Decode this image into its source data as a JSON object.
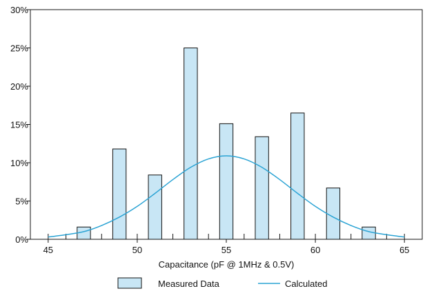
{
  "chart_data": {
    "type": "bar",
    "xlabel": "Capacitance (pF @ 1MHz & 0.5V)",
    "ylabel": "",
    "xlim": [
      44,
      66
    ],
    "ylim": [
      0,
      30
    ],
    "x_ticks": [
      45,
      50,
      55,
      60,
      65
    ],
    "x_tick_labels": [
      "45",
      "50",
      "55",
      "60",
      "65"
    ],
    "y_ticks": [
      0,
      5,
      10,
      15,
      20,
      25,
      30
    ],
    "y_tick_labels": [
      "0%",
      "5%",
      "10%",
      "15%",
      "20%",
      "25%",
      "30%"
    ],
    "minor_x_ticks": [
      45,
      46,
      47,
      48,
      49,
      50,
      51,
      52,
      53,
      54,
      55,
      56,
      57,
      58,
      59,
      60,
      61,
      62,
      63,
      64,
      65
    ],
    "grid": false,
    "legend_position": "bottom",
    "series": [
      {
        "name": "Measured Data",
        "type": "bar",
        "color": "#c8e6f5",
        "stroke": "#111111",
        "x": [
          47,
          49,
          51,
          53,
          55,
          57,
          59,
          61,
          63
        ],
        "values": [
          1.6,
          11.8,
          8.4,
          25.0,
          15.1,
          13.4,
          16.5,
          6.7,
          1.6
        ]
      },
      {
        "name": "Calculated",
        "type": "line",
        "color": "#2aa3d4",
        "x": [
          45,
          46,
          47,
          48,
          49,
          50,
          51,
          52,
          53,
          54,
          55,
          56,
          57,
          58,
          59,
          60,
          61,
          62,
          63,
          64,
          65
        ],
        "values": [
          0.3,
          0.6,
          1.0,
          1.8,
          2.9,
          4.3,
          6.0,
          7.8,
          9.4,
          10.5,
          10.9,
          10.5,
          9.4,
          7.8,
          6.0,
          4.3,
          2.9,
          1.8,
          1.0,
          0.6,
          0.3
        ]
      }
    ]
  }
}
